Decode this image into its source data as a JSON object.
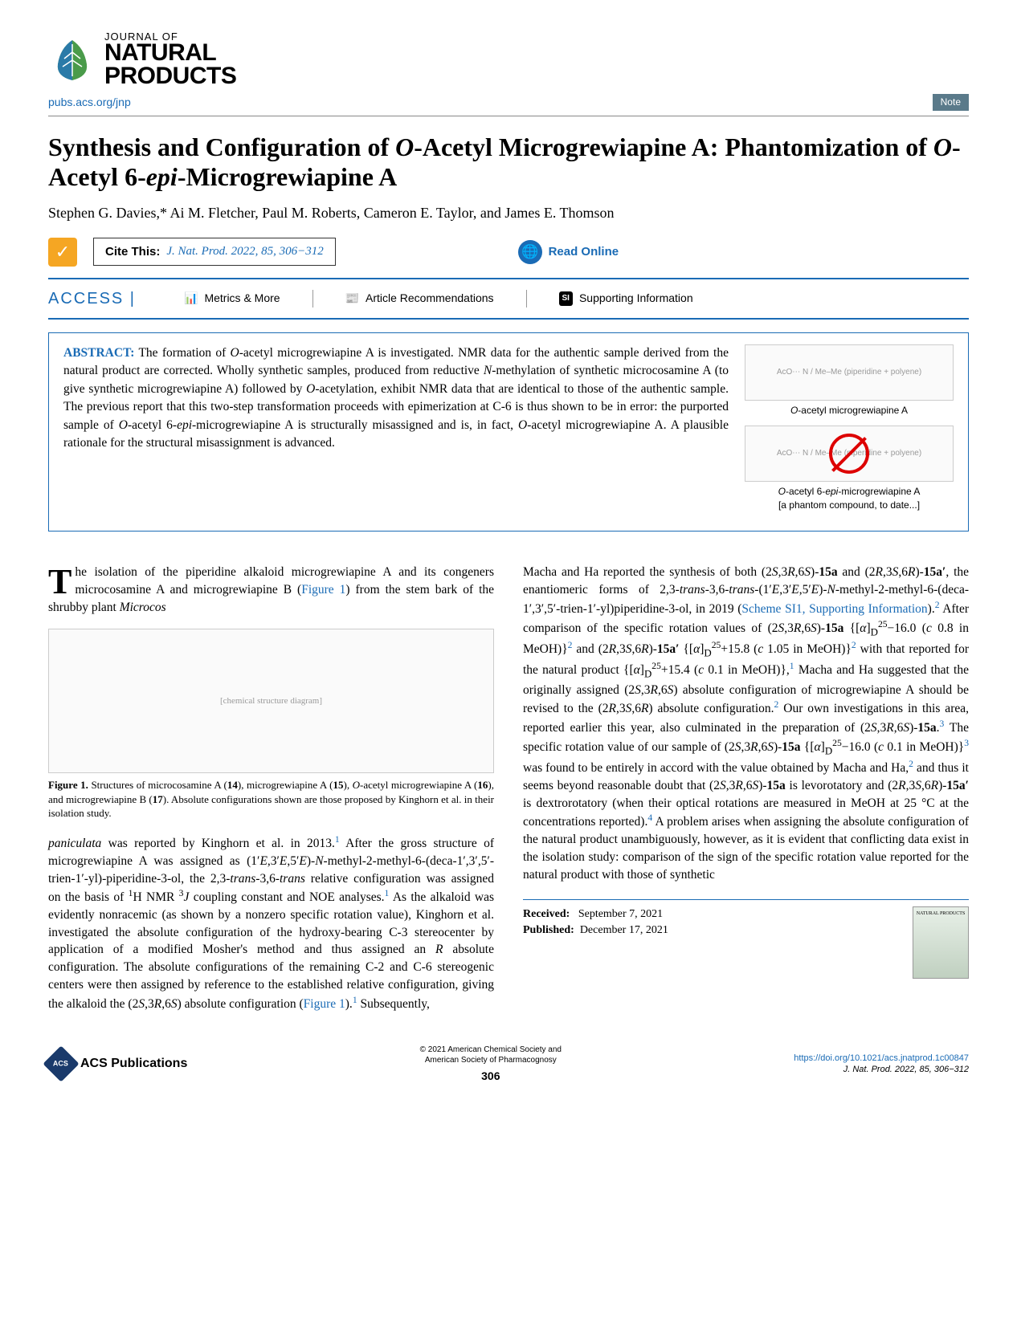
{
  "journal": {
    "small": "JOURNAL OF",
    "big1": "NATURAL",
    "big2": "PRODUCTS",
    "pubs_link": "pubs.acs.org/jnp",
    "note": "Note"
  },
  "title_html": "Synthesis and Configuration of <i>O</i>-Acetyl Microgrewiapine A: Phantomization of <i>O</i>-Acetyl 6-<i>epi</i>-Microgrewiapine A",
  "authors_html": "Stephen G. Davies,* Ai M. Fletcher, Paul M. Roberts, Cameron E. Taylor, and James E. Thomson",
  "cite": {
    "label": "Cite This:",
    "ref": "J. Nat. Prod. 2022, 85, 306−312",
    "read_online": "Read Online"
  },
  "access": {
    "label": "ACCESS |",
    "metrics": "Metrics & More",
    "recommendations": "Article Recommendations",
    "si": "Supporting Information",
    "si_badge": "SI"
  },
  "abstract": {
    "label": "ABSTRACT:",
    "text_html": "The formation of <i>O</i>-acetyl microgrewiapine A is investigated. NMR data for the authentic sample derived from the natural product are corrected. Wholly synthetic samples, produced from reductive <i>N</i>-methylation of synthetic microcosamine A (to give synthetic microgrewiapine A) followed by <i>O</i>-acetylation, exhibit NMR data that are identical to those of the authentic sample. The previous report that this two-step transformation proceeds with epimerization at C-6 is thus shown to be in error: the purported sample of <i>O</i>-acetyl 6-<i>epi</i>-microgrewiapine A is structurally misassigned and is, in fact, <i>O</i>-acetyl microgrewiapine A. A plausible rationale for the structural misassignment is advanced.",
    "fig1_label_html": "<i>O</i>-acetyl microgrewiapine A",
    "fig2_label_html": "<i>O</i>-acetyl 6-<i>epi</i>-microgrewiapine A<br>[a phantom compound, to date...]"
  },
  "col1": {
    "intro_html": "he isolation of the piperidine alkaloid microgrewiapine A and its congeners microcosamine A and microgrewiapine B (<span class='link'>Figure 1</span>) from the stem bark of the shrubby plant <i>Microcos</i>",
    "fig_placeholder": "[chemical structure diagram]",
    "fig_caption_html": "<span class='fig-label'>Figure 1.</span> Structures of microcosamine A (<b>14</b>), microgrewiapine A (<b>15</b>), <i>O</i>-acetyl microgrewiapine A (<b>16</b>), and microgrewiapine B (<b>17</b>). Absolute configurations shown are those proposed by Kinghorn et al. in their isolation study.",
    "body_html": "<i>paniculata</i> was reported by Kinghorn et al. in 2013.<sup class='link'>1</sup> After the gross structure of microgrewiapine A was assigned as (1′<i>E</i>,3′<i>E</i>,5′<i>E</i>)-<i>N</i>-methyl-2-methyl-6-(deca-1′,3′,5′-trien-1′-yl)-piperidine-3-ol, the 2,3-<i>trans</i>-3,6-<i>trans</i> relative configuration was assigned on the basis of <sup>1</sup>H NMR <sup>3</sup><i>J</i> coupling constant and NOE analyses.<sup class='link'>1</sup> As the alkaloid was evidently nonracemic (as shown by a nonzero specific rotation value), Kinghorn et al. investigated the absolute configuration of the hydroxy-bearing C-3 stereocenter by application of a modified Mosher's method and thus assigned an <i>R</i> absolute configuration. The absolute configurations of the remaining C-2 and C-6 stereogenic centers were then assigned by reference to the established relative configuration, giving the alkaloid the (2<i>S</i>,3<i>R</i>,6<i>S</i>) absolute configuration (<span class='link'>Figure 1</span>).<sup class='link'>1</sup> Subsequently,"
  },
  "col2": {
    "body_html": "Macha and Ha reported the synthesis of both (2<i>S</i>,3<i>R</i>,6<i>S</i>)-<b>15a</b> and (2<i>R</i>,3<i>S</i>,6<i>R</i>)-<b>15a′</b>, the enantiomeric forms of 2,3-<i>trans</i>-3,6-<i>trans</i>-(1′<i>E</i>,3′<i>E</i>,5′<i>E</i>)-<i>N</i>-methyl-2-methyl-6-(deca-1′,3′,5′-trien-1′-yl)piperidine-3-ol, in 2019 (<span class='link'>Scheme SI1, Supporting Information</span>).<sup class='link'>2</sup> After comparison of the specific rotation values of (2<i>S</i>,3<i>R</i>,6<i>S</i>)-<b>15a</b> {[<i>α</i>]<sub>D</sub><sup>25</sup>−16.0 (<i>c</i> 0.8 in MeOH)}<sup class='link'>2</sup> and (2<i>R</i>,3<i>S</i>,6<i>R</i>)-<b>15a′</b> {[<i>α</i>]<sub>D</sub><sup>25</sup>+15.8 (<i>c</i> 1.05 in MeOH)}<sup class='link'>2</sup> with that reported for the natural product {[<i>α</i>]<sub>D</sub><sup>25</sup>+15.4 (<i>c</i> 0.1 in MeOH)},<sup class='link'>1</sup> Macha and Ha suggested that the originally assigned (2<i>S</i>,3<i>R</i>,6<i>S</i>) absolute configuration of microgrewiapine A should be revised to the (2<i>R</i>,3<i>S</i>,6<i>R</i>) absolute configuration.<sup class='link'>2</sup> Our own investigations in this area, reported earlier this year, also culminated in the preparation of (2<i>S</i>,3<i>R</i>,6<i>S</i>)-<b>15a</b>.<sup class='link'>3</sup> The specific rotation value of our sample of (2<i>S</i>,3<i>R</i>,6<i>S</i>)-<b>15a</b> {[<i>α</i>]<sub>D</sub><sup>25</sup>−16.0 (<i>c</i> 0.1 in MeOH)}<sup class='link'>3</sup> was found to be entirely in accord with the value obtained by Macha and Ha,<sup class='link'>2</sup> and thus it seems beyond reasonable doubt that (2<i>S</i>,3<i>R</i>,6<i>S</i>)-<b>15a</b> is levorotatory and (2<i>R</i>,3<i>S</i>,6<i>R</i>)-<b>15a′</b> is dextrorotatory (when their optical rotations are measured in MeOH at 25 °C at the concentrations reported).<sup class='link'>4</sup> A problem arises when assigning the absolute configuration of the natural product unambiguously, however, as it is evident that conflicting data exist in the isolation study: comparison of the sign of the specific rotation value reported for the natural product with those of synthetic",
    "received_label": "Received:",
    "received_date": "September 7, 2021",
    "published_label": "Published:",
    "published_date": "December 17, 2021"
  },
  "footer": {
    "acs": "ACS Publications",
    "copyright1": "© 2021 American Chemical Society and",
    "copyright2": "American Society of Pharmacognosy",
    "page": "306",
    "doi": "https://doi.org/10.1021/acs.jnatprod.1c00847",
    "ref": "J. Nat. Prod. 2022, 85, 306−312"
  }
}
